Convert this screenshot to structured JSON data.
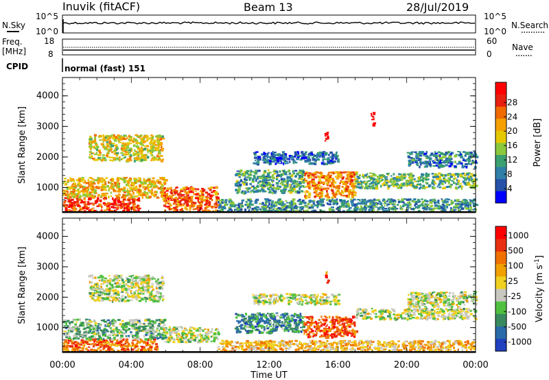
{
  "header": {
    "station": "Inuvik (fitACF)",
    "beam": "Beam 13",
    "date": "28/Jul/2019"
  },
  "nsky_panel": {
    "left_label": "N.Sky",
    "right_label": "N.Search",
    "left_ticks": [
      "10^5",
      "10^0"
    ],
    "right_ticks": [
      "10^5",
      "10^0"
    ]
  },
  "freq_panel": {
    "left_label_1": "Freq.",
    "left_label_2": "[MHz]",
    "right_label": "Nave",
    "left_ticks": [
      "18",
      "8"
    ],
    "right_ticks": [
      "60",
      "0"
    ]
  },
  "cpid": {
    "label": "CPID",
    "value": "normal (fast) 151"
  },
  "chart_data": [
    {
      "type": "heatmap",
      "title": "",
      "quantity": "Power",
      "xlabel": "Time UT",
      "ylabel": "Slant Range [km]",
      "x_ticks": [
        "00:00",
        "04:00",
        "08:00",
        "12:00",
        "16:00",
        "20:00",
        "00:00"
      ],
      "y_ticks": [
        "1000",
        "2000",
        "3000",
        "4000"
      ],
      "ylim": [
        180,
        4600
      ],
      "xlim_hours": [
        0,
        24
      ],
      "colorbar_label": "Power [dB]",
      "colorbar_ticks": [
        "4",
        "8",
        "12",
        "16",
        "20",
        "24",
        "28"
      ],
      "colorbar_colors": [
        "#0000ff",
        "#2552a8",
        "#2f7fa8",
        "#3aa070",
        "#8cc83c",
        "#e6c800",
        "#f5a000",
        "#f06a00",
        "#e82010",
        "#ff0000"
      ],
      "scatter_regions": [
        {
          "t0": 0.0,
          "t1": 4.5,
          "r0": 250,
          "r1": 700,
          "level": 0.85
        },
        {
          "t0": 0.0,
          "t1": 6.0,
          "r0": 700,
          "r1": 1350,
          "level": 0.6
        },
        {
          "t0": 1.5,
          "t1": 5.8,
          "r0": 1900,
          "r1": 2750,
          "level": 0.55
        },
        {
          "t0": 5.8,
          "t1": 9.0,
          "r0": 250,
          "r1": 1050,
          "level": 0.75
        },
        {
          "t0": 9.0,
          "t1": 24.0,
          "r0": 250,
          "r1": 650,
          "level": 0.3
        },
        {
          "t0": 10.0,
          "t1": 14.0,
          "r0": 850,
          "r1": 1600,
          "level": 0.35
        },
        {
          "t0": 14.0,
          "t1": 17.0,
          "r0": 700,
          "r1": 1550,
          "level": 0.7
        },
        {
          "t0": 17.0,
          "t1": 24.0,
          "r0": 1000,
          "r1": 1500,
          "level": 0.4
        },
        {
          "t0": 11.0,
          "t1": 16.0,
          "r0": 1800,
          "r1": 2200,
          "level": 0.2
        },
        {
          "t0": 20.0,
          "t1": 24.0,
          "r0": 1700,
          "r1": 2200,
          "level": 0.25
        },
        {
          "t0": 15.2,
          "t1": 15.4,
          "r0": 2500,
          "r1": 2900,
          "level": 1.0
        },
        {
          "t0": 17.9,
          "t1": 18.1,
          "r0": 3000,
          "r1": 3500,
          "level": 1.0
        }
      ]
    },
    {
      "type": "heatmap",
      "title": "",
      "quantity": "Velocity",
      "xlabel": "Time UT",
      "ylabel": "Slant Range [km]",
      "x_ticks": [
        "00:00",
        "04:00",
        "08:00",
        "12:00",
        "16:00",
        "20:00",
        "00:00"
      ],
      "y_ticks": [
        "1000",
        "2000",
        "3000",
        "4000"
      ],
      "ylim": [
        180,
        4600
      ],
      "xlim_hours": [
        0,
        24
      ],
      "colorbar_label": "Velocity [m s",
      "colorbar_label_sup": "-1",
      "colorbar_label_end": "]",
      "colorbar_ticks": [
        "1000",
        "500",
        "100",
        "25",
        "-25",
        "-100",
        "-500",
        "-1000"
      ],
      "colorbar_colors": [
        "#2040c0",
        "#2a6aa8",
        "#3a8a60",
        "#50c040",
        "#c8c8c0",
        "#f0d020",
        "#f0a000",
        "#f07000",
        "#e83010",
        "#ff0000"
      ],
      "scatter_regions": [
        {
          "t0": 0.0,
          "t1": 5.5,
          "r0": 250,
          "r1": 650,
          "level": 0.75
        },
        {
          "t0": 0.0,
          "t1": 6.0,
          "r0": 650,
          "r1": 1300,
          "level": 0.35
        },
        {
          "t0": 1.5,
          "t1": 5.8,
          "r0": 1900,
          "r1": 2750,
          "level": 0.45
        },
        {
          "t0": 5.8,
          "t1": 9.0,
          "r0": 550,
          "r1": 1050,
          "level": 0.45
        },
        {
          "t0": 9.0,
          "t1": 24.0,
          "r0": 250,
          "r1": 600,
          "level": 0.6
        },
        {
          "t0": 10.0,
          "t1": 14.0,
          "r0": 850,
          "r1": 1500,
          "level": 0.25
        },
        {
          "t0": 14.0,
          "t1": 17.0,
          "r0": 700,
          "r1": 1400,
          "level": 0.8
        },
        {
          "t0": 17.0,
          "t1": 24.0,
          "r0": 1300,
          "r1": 1650,
          "level": 0.45
        },
        {
          "t0": 11.0,
          "t1": 16.0,
          "r0": 1800,
          "r1": 2150,
          "level": 0.45
        },
        {
          "t0": 20.0,
          "t1": 24.0,
          "r0": 1700,
          "r1": 2200,
          "level": 0.45
        },
        {
          "t0": 15.2,
          "t1": 15.4,
          "r0": 2500,
          "r1": 2900,
          "level": 0.8
        }
      ]
    }
  ]
}
